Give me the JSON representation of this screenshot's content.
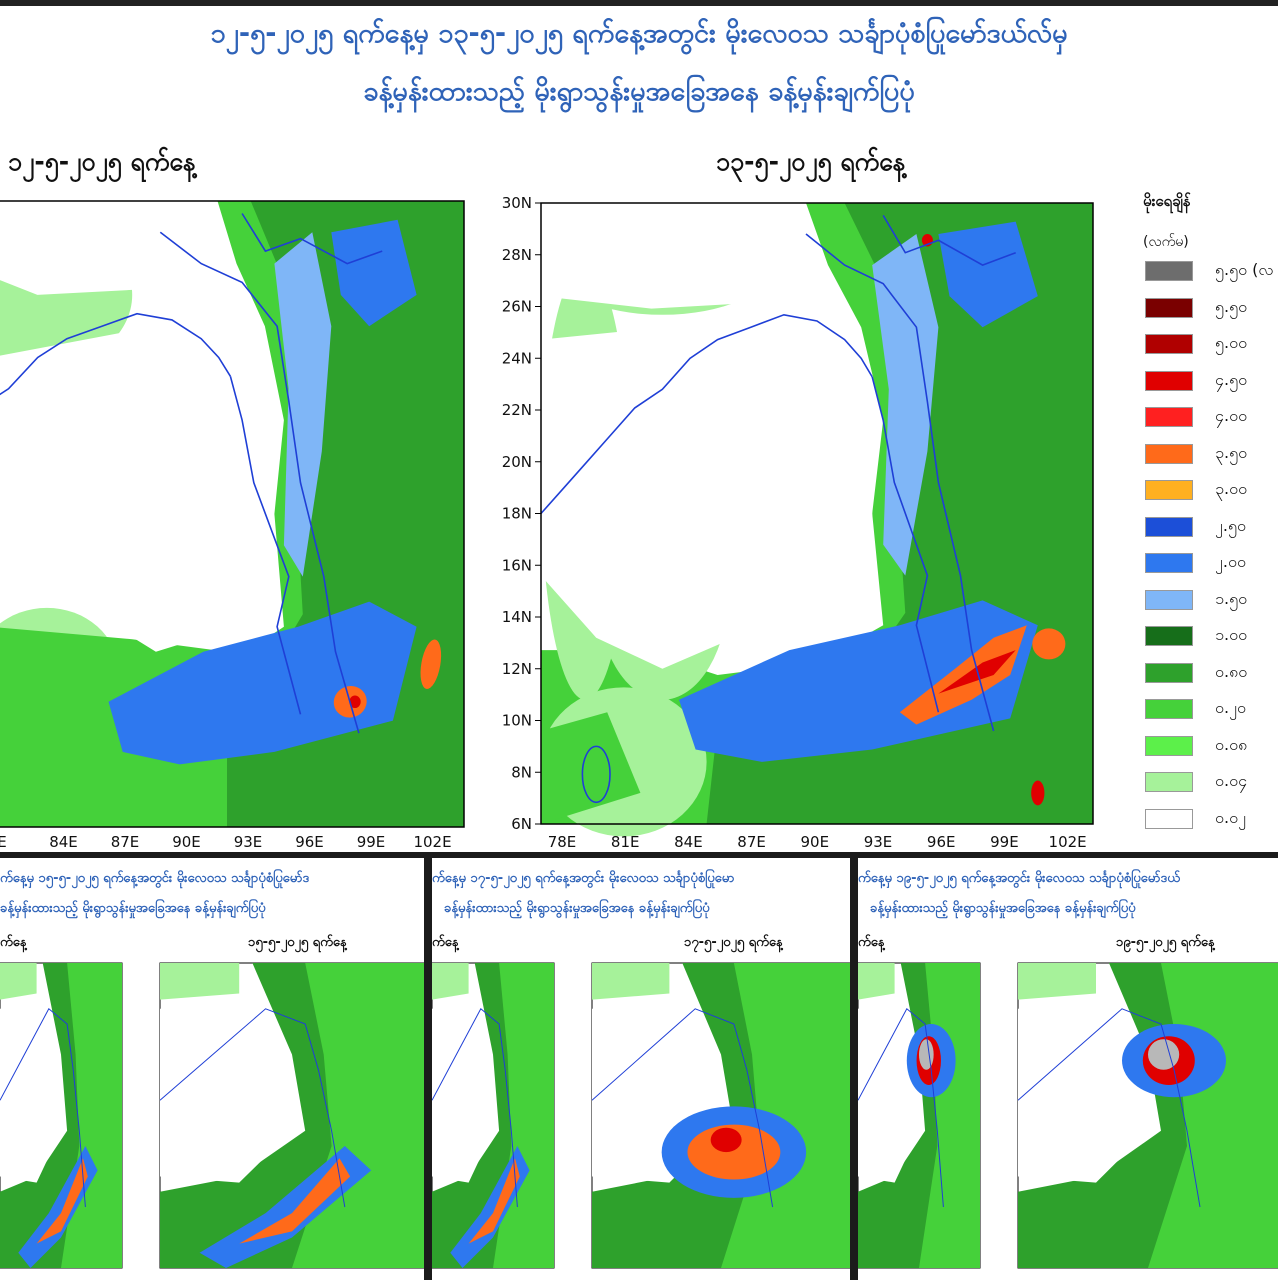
{
  "header": {
    "title_line1": "၁၂-၅-၂၀၂၅ ရက်နေ့မှ ၁၃-၅-၂၀၂၅ ရက်နေ့အတွင်း မိုးလေဝသ သင်္ချာပုံစံပြုမော်ဒယ်လ်မှ",
    "title_line2": "ခန့်မှန်းထားသည့် မိုးရွာသွန်းမှုအခြေအနေ ခန့်မှန်းချက်ပြပုံ"
  },
  "maps": [
    {
      "date": "၁၂-၅-၂၀၂၅ ရက်နေ့"
    },
    {
      "date": "၁၃-၅-၂၀၂၅ ရက်နေ့"
    }
  ],
  "axes": {
    "lat_labels": [
      "30N",
      "28N",
      "26N",
      "24N",
      "22N",
      "20N",
      "18N",
      "16N",
      "14N",
      "12N",
      "10N",
      "8N",
      "6N"
    ],
    "lon_labels": [
      "78E",
      "81E",
      "84E",
      "87E",
      "90E",
      "93E",
      "96E",
      "99E",
      "102E"
    ],
    "left_lon_labels": [
      "E",
      "84E",
      "87E",
      "90E",
      "93E",
      "96E",
      "99E",
      "102E"
    ]
  },
  "legend": {
    "title": "မိုးရေချိန်",
    "unit": "(လက်မ)",
    "items": [
      {
        "label": "၅.၅၀ (လ",
        "color": "#6d6d6d"
      },
      {
        "label": "၅.၅၀",
        "color": "#7a0000"
      },
      {
        "label": "၅.၀၀",
        "color": "#b00000"
      },
      {
        "label": "၄.၅၀",
        "color": "#e00000"
      },
      {
        "label": "၄.၀၀",
        "color": "#ff2020"
      },
      {
        "label": "၃.၅၀",
        "color": "#ff6a1a"
      },
      {
        "label": "၃.၀၀",
        "color": "#ffb020"
      },
      {
        "label": "၂.၅၀",
        "color": "#1c4fd8"
      },
      {
        "label": "၂.၀၀",
        "color": "#2e78ef"
      },
      {
        "label": "၁.၅၀",
        "color": "#7fb6f7"
      },
      {
        "label": "၁.၀၀",
        "color": "#166e1a"
      },
      {
        "label": "၀.၈၀",
        "color": "#2ea12c"
      },
      {
        "label": "၀.၂၀",
        "color": "#45d13a"
      },
      {
        "label": "၀.၀၈",
        "color": "#5cf04a"
      },
      {
        "label": "၀.၀၄",
        "color": "#a6f29a"
      },
      {
        "label": "၀.၀၂",
        "color": "#ffffff"
      }
    ]
  },
  "thumbnails": [
    {
      "title1": "က်နေ့မှ ၁၅-၅-၂၀၂၅ ရက်နေ့အတွင်း မိုးလေဝသ သင်္ချာပုံစံပြုမော်ဒ",
      "title2": "ခန့်မှန်းထားသည့် မိုးရွာသွန်းမှုအခြေအနေ ခန့်မှန်းချက်ပြပုံ",
      "date_left": "က်နေ့",
      "date_right": "၁၅-၅-၂၀၂၅ ရက်နေ့"
    },
    {
      "title1": "က်နေ့မှ ၁၇-၅-၂၀၂၅ ရက်နေ့အတွင်း မိုးလေဝသ သင်္ချာပုံစံပြုမော",
      "title2": "ခန့်မှန်းထားသည့် မိုးရွာသွန်းမှုအခြေအနေ ခန့်မှန်းချက်ပြပုံ",
      "date_left": "က်နေ့",
      "date_right": "၁၇-၅-၂၀၂၅ ရက်နေ့"
    },
    {
      "title1": "က်နေ့မှ ၁၉-၅-၂၀၂၅ ရက်နေ့အတွင်း မိုးလေဝသ သင်္ချာပုံစံပြုမော်ဒယ်",
      "title2": "ခန့်မှန်းထားသည့် မိုးရွာသွန်းမှုအခြေအနေ ခန့်မှန်းချက်ပြပုံ",
      "date_left": "က်နေ့",
      "date_right": "၁၉-၅-၂၀၂၅ ရက်နေ့"
    }
  ]
}
